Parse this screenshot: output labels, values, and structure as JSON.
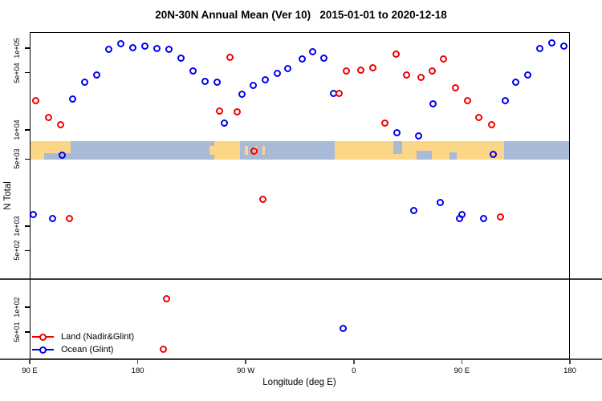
{
  "title": "20N-30N Annual Mean (Ver 10)   2015-01-01 to 2020-12-18",
  "chart_data": {
    "type": "scatter",
    "title": "20N-30N Annual Mean (Ver 10)   2015-01-01 to 2020-12-18",
    "xlabel": "Longitude (deg E)",
    "ylabel": "N Total",
    "x_axis": {
      "note": "longitude axis starts at 90E and wraps eastward around the globe back to 180",
      "range_axis_deg": [
        90,
        540
      ],
      "ticks": [
        {
          "label": "90 E",
          "deg": 90
        },
        {
          "label": "180",
          "deg": 180
        },
        {
          "label": "90 W",
          "deg": 270
        },
        {
          "label": "0",
          "deg": 360
        },
        {
          "label": "90 E",
          "deg": 450
        },
        {
          "label": "180",
          "deg": 540
        }
      ]
    },
    "y_axis": {
      "scale": "log",
      "grid": false,
      "ticks": [
        {
          "label": "1e+05",
          "value": 100000
        },
        {
          "label": "5e+04",
          "value": 50000
        },
        {
          "label": "1e+04",
          "value": 10000
        },
        {
          "label": "5e+03",
          "value": 5000
        },
        {
          "label": "1e+03",
          "value": 1000
        },
        {
          "label": "5e+02",
          "value": 500
        },
        {
          "label": "1e+02",
          "value": 100
        },
        {
          "label": "5e+01",
          "value": 50
        }
      ],
      "approx_range": [
        20,
        130000
      ],
      "separator_line_value": 220
    },
    "series": [
      {
        "name": "Ocean (Glint)",
        "color": "#0000ee",
        "marker": "open-circle",
        "points": [
          [
            93,
            1330
          ],
          [
            109,
            1190
          ],
          [
            117,
            5500
          ],
          [
            126,
            23600
          ],
          [
            136,
            38000
          ],
          [
            146,
            47000
          ],
          [
            156,
            96000
          ],
          [
            166,
            112000
          ],
          [
            176,
            102000
          ],
          [
            186,
            107000
          ],
          [
            196,
            100000
          ],
          [
            206,
            96000
          ],
          [
            216,
            76000
          ],
          [
            226,
            53000
          ],
          [
            236,
            39000
          ],
          [
            246,
            38000
          ],
          [
            252,
            12200
          ],
          [
            267,
            27600
          ],
          [
            276,
            35000
          ],
          [
            286,
            41000
          ],
          [
            296,
            49000
          ],
          [
            305,
            56000
          ],
          [
            317,
            73000
          ],
          [
            326,
            91000
          ],
          [
            335,
            76000
          ],
          [
            343,
            28000
          ],
          [
            351,
            55
          ],
          [
            396,
            9400
          ],
          [
            410,
            1440
          ],
          [
            414,
            8700
          ],
          [
            426,
            20600
          ],
          [
            432,
            1750
          ],
          [
            448,
            1210
          ],
          [
            450,
            1330
          ],
          [
            468,
            1190
          ],
          [
            476,
            5600
          ],
          [
            486,
            23000
          ],
          [
            495,
            38000
          ],
          [
            505,
            47000
          ],
          [
            515,
            98000
          ],
          [
            525,
            115000
          ],
          [
            535,
            107000
          ]
        ]
      },
      {
        "name": "Land (Nadir&Glint)",
        "color": "#ee0000",
        "marker": "open-circle",
        "points": [
          [
            95,
            23000
          ],
          [
            106,
            14300
          ],
          [
            116,
            11500
          ],
          [
            123,
            1210
          ],
          [
            201,
            31
          ],
          [
            204,
            126
          ],
          [
            248,
            17000
          ],
          [
            257,
            78000
          ],
          [
            263,
            16800
          ],
          [
            277,
            6000
          ],
          [
            284,
            1900
          ],
          [
            348,
            28000
          ],
          [
            354,
            52000
          ],
          [
            366,
            54000
          ],
          [
            376,
            58000
          ],
          [
            386,
            12000
          ],
          [
            395,
            84000
          ],
          [
            404,
            47000
          ],
          [
            416,
            44000
          ],
          [
            425,
            52000
          ],
          [
            435,
            73000
          ],
          [
            445,
            33000
          ],
          [
            455,
            23000
          ],
          [
            464,
            14300
          ],
          [
            475,
            11700
          ],
          [
            482,
            1240
          ]
        ]
      }
    ],
    "map_strip": {
      "description": "world land/ocean reference band at 20N-30N latitude",
      "n_value_range": [
        4900,
        7600
      ],
      "ocean_color": "#a9bad8",
      "land_color": "#fbd687",
      "land_segments_deg": [
        [
          90,
          124
        ],
        [
          244,
          265
        ],
        [
          344,
          485
        ]
      ],
      "island_patches_deg": [
        [
          240,
          244
        ],
        [
          269,
          272
        ],
        [
          277,
          279
        ],
        [
          284,
          286
        ]
      ],
      "ocean_notches": [
        {
          "deg": [
            102,
            124
          ],
          "align": "bottom",
          "frac": 0.35
        },
        {
          "deg": [
            393,
            400
          ],
          "align": "top",
          "frac": 0.7
        },
        {
          "deg": [
            412,
            425
          ],
          "align": "bottom",
          "frac": 0.5
        },
        {
          "deg": [
            440,
            446
          ],
          "align": "bottom",
          "frac": 0.4
        }
      ]
    }
  },
  "legend": {
    "items": [
      {
        "label": "Land (Nadir&Glint)",
        "color": "#ee0000"
      },
      {
        "label": "Ocean (Glint)",
        "color": "#0000ee"
      }
    ]
  }
}
